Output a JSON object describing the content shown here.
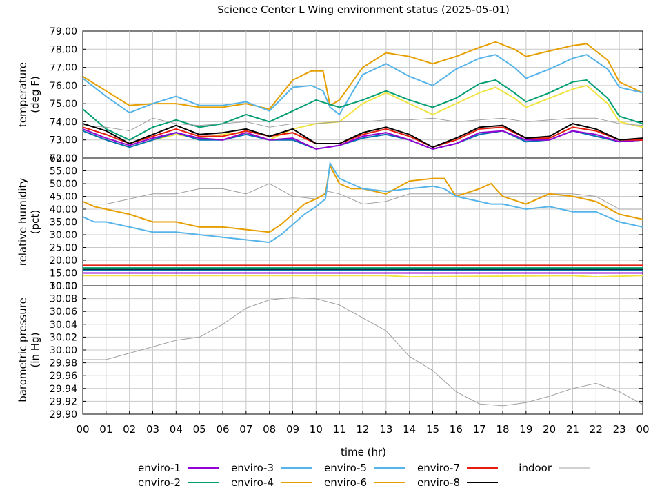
{
  "title": "Science Center L Wing environment status (2025-05-01)",
  "xlabel": "time (hr)",
  "xticks": [
    "00",
    "01",
    "02",
    "03",
    "04",
    "05",
    "06",
    "07",
    "08",
    "09",
    "10",
    "11",
    "12",
    "13",
    "14",
    "15",
    "16",
    "17",
    "18",
    "19",
    "20",
    "21",
    "22",
    "23",
    "00"
  ],
  "legend": [
    {
      "name": "enviro-1",
      "color": "#9400d3"
    },
    {
      "name": "enviro-2",
      "color": "#009e73"
    },
    {
      "name": "enviro-3",
      "color": "#56b4e9"
    },
    {
      "name": "enviro-4",
      "color": "#e69f00"
    },
    {
      "name": "enviro-5",
      "color": "#56b4e9"
    },
    {
      "name": "enviro-6",
      "color": "#e69f00"
    },
    {
      "name": "enviro-7",
      "color": "#f0e442"
    },
    {
      "name": "enviro-8",
      "color": "#0072b2"
    },
    {
      "name": "enviro-7b",
      "color": "#e51e10"
    },
    {
      "name": "enviro-8b",
      "color": "#000000"
    },
    {
      "name": "indoor",
      "color": "#a0a0a0"
    }
  ],
  "legend_labels": {
    "e1": "enviro-1",
    "e2": "enviro-2",
    "e3": "enviro-3",
    "e4": "enviro-4",
    "e5": "enviro-5",
    "e6": "enviro-6",
    "e7": "enviro-7",
    "e8": "enviro-8",
    "indoor": "indoor"
  },
  "chart_data": [
    {
      "type": "line",
      "ylabel": "temperature\n(deg F)",
      "ylabel_lines": [
        "temperature",
        "(deg F)"
      ],
      "ylim": [
        72.0,
        79.0
      ],
      "yticks": [
        "79.00",
        "78.00",
        "77.00",
        "76.00",
        "75.00",
        "74.00",
        "73.00",
        "72.00"
      ],
      "series": [
        {
          "name": "enviro-6",
          "color": "#e69f00",
          "x": [
            0,
            1,
            2,
            3,
            4,
            5,
            6,
            7,
            8,
            9,
            9.8,
            10.3,
            10.6,
            11,
            12,
            13,
            14,
            15,
            16,
            17,
            17.7,
            18.5,
            19,
            20,
            21,
            21.6,
            22.5,
            23,
            24
          ],
          "y": [
            76.5,
            75.7,
            74.9,
            75.0,
            75.0,
            74.8,
            74.8,
            75.0,
            74.7,
            76.3,
            76.8,
            76.8,
            74.9,
            75.2,
            77.0,
            77.8,
            77.6,
            77.2,
            77.6,
            78.1,
            78.4,
            78.0,
            77.6,
            77.9,
            78.2,
            78.3,
            77.4,
            76.2,
            75.6
          ]
        },
        {
          "name": "enviro-5",
          "color": "#56b4e9",
          "x": [
            0,
            1,
            2,
            3,
            4,
            5,
            6,
            7,
            8,
            9,
            9.8,
            10.3,
            10.6,
            11,
            12,
            13,
            14,
            15,
            16,
            17,
            17.7,
            18.5,
            19,
            20,
            21,
            21.6,
            22.5,
            23,
            24
          ],
          "y": [
            76.4,
            75.4,
            74.5,
            75.0,
            75.4,
            74.9,
            74.9,
            75.1,
            74.6,
            75.9,
            76.0,
            75.7,
            74.8,
            74.4,
            76.6,
            77.2,
            76.5,
            76.0,
            76.9,
            77.5,
            77.7,
            77.0,
            76.4,
            76.9,
            77.5,
            77.7,
            76.9,
            75.9,
            75.6
          ]
        },
        {
          "name": "enviro-2",
          "color": "#009e73",
          "x": [
            0,
            1,
            2,
            3,
            4,
            5,
            6,
            7,
            8,
            9,
            10,
            11,
            12,
            13,
            14,
            15,
            16,
            17,
            17.7,
            18.5,
            19,
            20,
            21,
            21.6,
            22.5,
            23,
            24
          ],
          "y": [
            74.7,
            73.6,
            73.0,
            73.7,
            74.1,
            73.7,
            73.9,
            74.4,
            74.0,
            74.6,
            75.2,
            74.8,
            75.2,
            75.7,
            75.2,
            74.8,
            75.3,
            76.1,
            76.3,
            75.6,
            75.1,
            75.6,
            76.2,
            76.3,
            75.3,
            74.3,
            73.9
          ]
        },
        {
          "name": "enviro-7",
          "color": "#f0e442",
          "x": [
            0,
            1,
            2,
            3,
            4,
            5,
            6,
            7,
            8,
            9,
            10,
            11,
            12,
            13,
            14,
            15,
            16,
            17,
            17.7,
            18.5,
            19,
            20,
            21,
            21.6,
            22.5,
            23,
            24
          ],
          "y": [
            73.5,
            73.0,
            72.6,
            73.0,
            73.3,
            73.1,
            73.3,
            73.4,
            73.0,
            73.6,
            73.9,
            74.0,
            75.0,
            75.6,
            75.0,
            74.4,
            75.0,
            75.6,
            75.9,
            75.3,
            74.8,
            75.3,
            75.8,
            76.0,
            75.0,
            74.0,
            73.7
          ]
        },
        {
          "name": "indoor",
          "color": "#a0a0a0",
          "x": [
            0,
            1,
            2,
            3,
            4,
            5,
            6,
            7,
            8,
            9,
            10,
            11,
            12,
            13,
            14,
            15,
            16,
            17,
            18,
            19,
            20,
            21,
            22,
            23,
            24
          ],
          "y": [
            73.8,
            73.7,
            73.5,
            74.2,
            73.9,
            73.8,
            73.9,
            74.0,
            73.7,
            73.9,
            73.9,
            74.0,
            74.0,
            74.1,
            74.1,
            74.2,
            74.0,
            74.1,
            74.2,
            74.0,
            74.1,
            74.2,
            74.2,
            73.9,
            73.8
          ]
        },
        {
          "name": "enviro-8",
          "color": "#0072b2",
          "x": [
            0,
            1,
            2,
            3,
            4,
            5,
            6,
            7,
            8,
            9,
            10,
            11,
            12,
            13,
            14,
            15,
            16,
            17,
            18,
            19,
            20,
            21,
            22,
            23,
            24
          ],
          "y": [
            73.5,
            73.0,
            72.6,
            73.0,
            73.4,
            73.0,
            73.0,
            73.3,
            73.0,
            73.0,
            72.5,
            72.7,
            73.1,
            73.3,
            73.0,
            72.5,
            72.8,
            73.3,
            73.5,
            72.9,
            73.0,
            73.5,
            73.2,
            72.9,
            73.0
          ]
        },
        {
          "name": "enviro-1",
          "color": "#9400d3",
          "x": [
            0,
            1,
            2,
            3,
            4,
            5,
            6,
            7,
            8,
            9,
            10,
            11,
            12,
            13,
            14,
            15,
            16,
            17,
            18,
            19,
            20,
            21,
            22,
            23,
            24
          ],
          "y": [
            73.6,
            73.1,
            72.7,
            73.1,
            73.4,
            73.1,
            73.0,
            73.4,
            73.0,
            73.1,
            72.5,
            72.7,
            73.2,
            73.4,
            73.0,
            72.5,
            72.8,
            73.4,
            73.5,
            73.0,
            73.0,
            73.5,
            73.3,
            72.9,
            73.0
          ]
        },
        {
          "name": "enviro-7b",
          "color": "#e51e10",
          "x": [
            0,
            1,
            2,
            3,
            4,
            5,
            6,
            7,
            8,
            9,
            10,
            11,
            12,
            13,
            14,
            15,
            16,
            17,
            18,
            19,
            20,
            21,
            22,
            23,
            24
          ],
          "y": [
            73.7,
            73.3,
            72.8,
            73.2,
            73.6,
            73.2,
            73.2,
            73.5,
            73.2,
            73.4,
            72.8,
            72.8,
            73.3,
            73.6,
            73.2,
            72.6,
            73.0,
            73.6,
            73.7,
            73.1,
            73.1,
            73.7,
            73.5,
            73.0,
            73.0
          ]
        },
        {
          "name": "enviro-8b",
          "color": "#000000",
          "x": [
            0,
            1,
            2,
            3,
            4,
            5,
            6,
            7,
            8,
            9,
            10,
            11,
            12,
            13,
            14,
            15,
            16,
            17,
            18,
            19,
            20,
            21,
            22,
            23,
            24
          ],
          "y": [
            73.9,
            73.5,
            72.8,
            73.3,
            73.8,
            73.3,
            73.4,
            73.6,
            73.2,
            73.6,
            72.8,
            72.8,
            73.4,
            73.7,
            73.3,
            72.6,
            73.1,
            73.7,
            73.8,
            73.1,
            73.2,
            73.9,
            73.6,
            73.0,
            73.1
          ]
        }
      ]
    },
    {
      "type": "line",
      "ylabel_lines": [
        "relative humidity",
        "(pct)"
      ],
      "ylim": [
        10.0,
        60.0
      ],
      "yticks": [
        "60.00",
        "55.00",
        "50.00",
        "45.00",
        "40.00",
        "35.00",
        "30.00",
        "25.00",
        "20.00",
        "15.00",
        "10.00"
      ],
      "series": [
        {
          "name": "indoor",
          "color": "#a0a0a0",
          "x": [
            0,
            1,
            2,
            3,
            4,
            5,
            6,
            7,
            8,
            9,
            10,
            10.5,
            11,
            12,
            13,
            14,
            15,
            16,
            17,
            18,
            19,
            20,
            21,
            22,
            23,
            24
          ],
          "y": [
            42,
            42,
            44,
            46,
            46,
            48,
            48,
            46,
            50,
            45,
            44,
            47,
            46,
            42,
            43,
            46,
            46,
            46,
            46,
            46,
            46,
            46,
            46,
            45,
            40,
            40
          ]
        },
        {
          "name": "enviro-6",
          "color": "#e69f00",
          "x": [
            0,
            0.5,
            1,
            2,
            3,
            4,
            5,
            6,
            7,
            8,
            8.5,
            9,
            9.5,
            10,
            10.4,
            10.6,
            11,
            11.5,
            12,
            13,
            14,
            15,
            15.5,
            16,
            17,
            17.5,
            18,
            19,
            20,
            21,
            22,
            23,
            24
          ],
          "y": [
            43,
            41,
            40,
            38,
            35,
            35,
            33,
            33,
            32,
            31,
            34,
            38,
            42,
            44,
            46,
            57,
            50,
            48,
            48,
            46,
            51,
            52,
            52,
            45,
            48,
            50,
            45,
            42,
            46,
            45,
            43,
            38,
            36
          ]
        },
        {
          "name": "enviro-5",
          "color": "#56b4e9",
          "x": [
            0,
            0.5,
            1,
            2,
            3,
            4,
            5,
            6,
            7,
            8,
            8.5,
            9,
            9.5,
            10,
            10.4,
            10.6,
            11,
            11.5,
            12,
            13,
            14,
            15,
            15.5,
            16,
            17,
            17.5,
            18,
            19,
            20,
            21,
            22,
            23,
            24
          ],
          "y": [
            37,
            35,
            35,
            33,
            31,
            31,
            30,
            29,
            28,
            27,
            30,
            34,
            38,
            41,
            44,
            58,
            52,
            50,
            48,
            47,
            48,
            49,
            48,
            45,
            43,
            42,
            42,
            40,
            41,
            39,
            39,
            35,
            33
          ]
        },
        {
          "name": "enviro-7b",
          "color": "#e51e10",
          "x": [
            0,
            24
          ],
          "y": [
            18,
            18
          ]
        },
        {
          "name": "enviro-2",
          "color": "#009e73",
          "x": [
            0,
            24
          ],
          "y": [
            17,
            17
          ]
        },
        {
          "name": "enviro-8b",
          "color": "#000000",
          "x": [
            0,
            24
          ],
          "y": [
            16.5,
            16.5
          ]
        },
        {
          "name": "enviro-8",
          "color": "#0072b2",
          "x": [
            0,
            24
          ],
          "y": [
            16,
            16
          ]
        },
        {
          "name": "enviro-1",
          "color": "#9400d3",
          "x": [
            0,
            24
          ],
          "y": [
            15,
            15
          ]
        },
        {
          "name": "enviro-7",
          "color": "#f0e442",
          "x": [
            0,
            13,
            14,
            21,
            22,
            24
          ],
          "y": [
            14,
            14,
            13.5,
            14,
            13.5,
            14
          ]
        }
      ]
    },
    {
      "type": "line",
      "ylabel_lines": [
        "barometric pressure",
        "(in Hg)"
      ],
      "ylim": [
        29.9,
        30.1
      ],
      "yticks": [
        "30.10",
        "30.08",
        "30.06",
        "30.04",
        "30.02",
        "30.00",
        "29.98",
        "29.96",
        "29.94",
        "29.92",
        "29.90"
      ],
      "series": [
        {
          "name": "indoor",
          "color": "#a0a0a0",
          "x": [
            0,
            1,
            2,
            3,
            4,
            5,
            6,
            7,
            8,
            9,
            10,
            11,
            12,
            13,
            14,
            15,
            16,
            17,
            18,
            19,
            20,
            21,
            22,
            23,
            24
          ],
          "y": [
            29.985,
            29.985,
            29.995,
            30.005,
            30.015,
            30.02,
            30.04,
            30.065,
            30.078,
            30.082,
            30.08,
            30.07,
            30.05,
            30.03,
            29.99,
            29.968,
            29.935,
            29.916,
            29.913,
            29.918,
            29.928,
            29.94,
            29.948,
            29.935,
            29.915
          ]
        }
      ]
    }
  ]
}
